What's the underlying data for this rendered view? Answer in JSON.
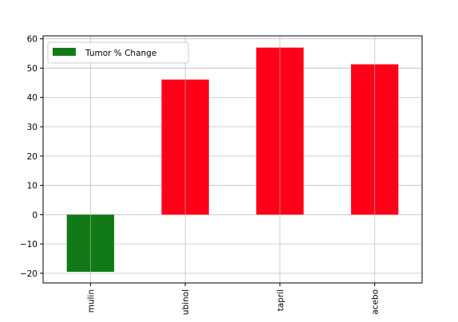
{
  "chart_data": {
    "type": "bar",
    "categories": [
      "mulin",
      "ubinol",
      "tapril",
      "acebo"
    ],
    "series": [
      {
        "name": "Tumor % Change",
        "values": [
          -19.5,
          46.1,
          57.0,
          51.3
        ]
      }
    ],
    "bar_colors": [
      "#117a17",
      "#ff0019",
      "#ff0019",
      "#ff0019"
    ],
    "legend_color": "#117a17",
    "title": "",
    "xlabel": "",
    "ylabel": "",
    "ylim": [
      -23.3,
      61.0
    ],
    "yticks": [
      -20,
      -10,
      0,
      10,
      20,
      30,
      40,
      50,
      60
    ],
    "grid": true,
    "legend_position": "top-left"
  }
}
